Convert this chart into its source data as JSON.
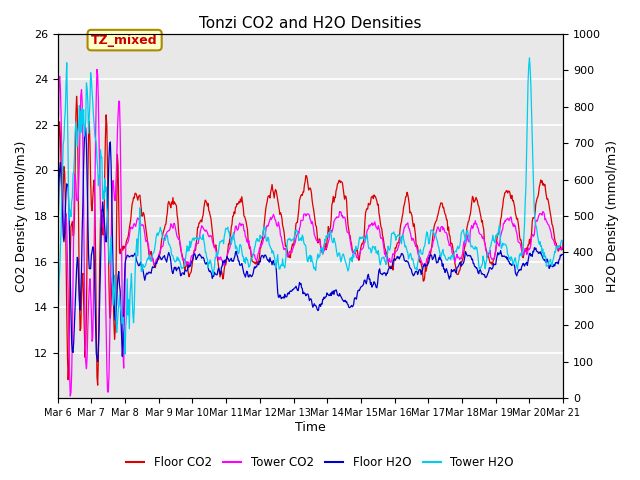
{
  "title": "Tonzi CO2 and H2O Densities",
  "xlabel": "Time",
  "ylabel_left": "CO2 Density (mmol/m3)",
  "ylabel_right": "H2O Density (mmol/m3)",
  "ylim_left": [
    10,
    26
  ],
  "ylim_right": [
    0,
    1000
  ],
  "annotation_text": "TZ_mixed",
  "annotation_color": "#cc0000",
  "annotation_bg": "#ffffcc",
  "annotation_border": "#aa8800",
  "colors": {
    "floor_co2": "#dd0000",
    "tower_co2": "#ff00ff",
    "floor_h2o": "#0000cc",
    "tower_h2o": "#00ccee"
  },
  "legend_labels": [
    "Floor CO2",
    "Tower CO2",
    "Floor H2O",
    "Tower H2O"
  ],
  "n_days": 15,
  "points_per_day": 48,
  "background_color": "#e8e8e8",
  "grid_color": "#ffffff",
  "yticks_left": [
    12,
    14,
    16,
    18,
    20,
    22,
    24,
    26
  ],
  "yticks_right": [
    0,
    100,
    200,
    300,
    400,
    500,
    600,
    700,
    800,
    900,
    1000
  ]
}
